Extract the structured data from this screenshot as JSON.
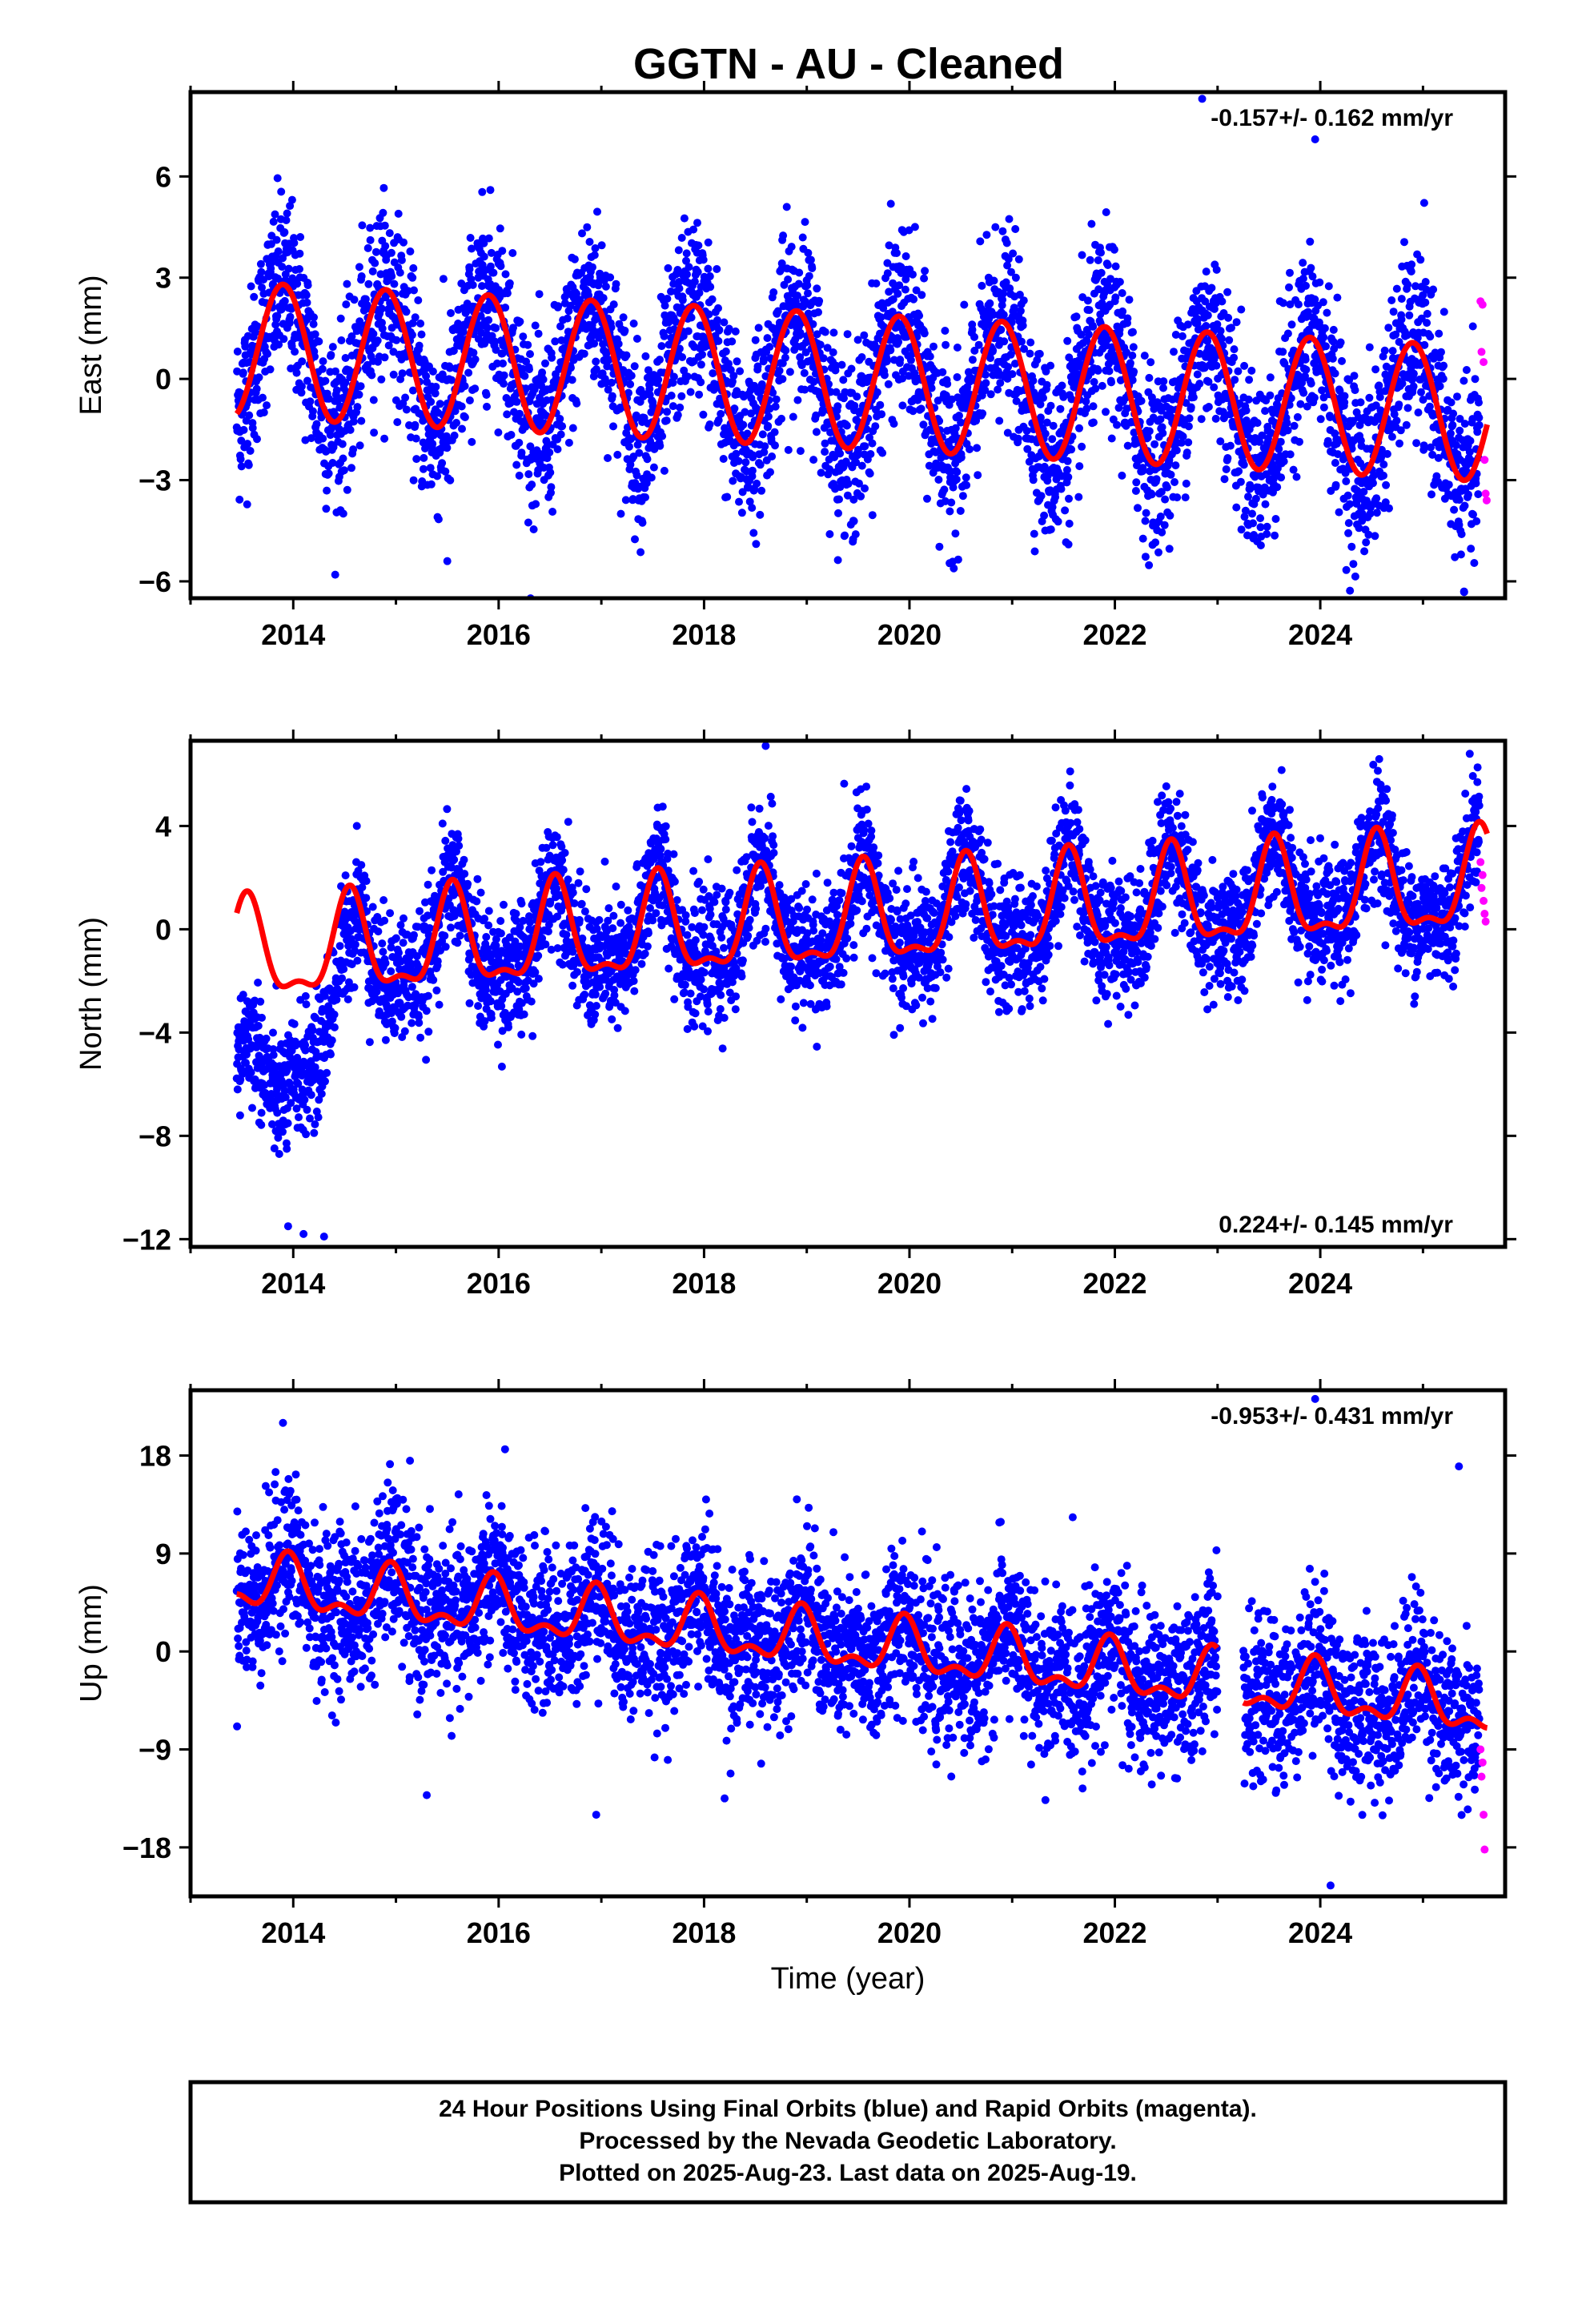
{
  "title": "GGTN  - AU - Cleaned",
  "footer": {
    "lines": [
      "24 Hour Positions Using Final Orbits (blue) and Rapid Orbits (magenta).",
      "Processed by the Nevada Geodetic Laboratory.",
      "Plotted on 2025-Aug-23. Last data on 2025-Aug-19."
    ]
  },
  "colors": {
    "final": "#0000ff",
    "rapid": "#ff00ff",
    "model": "#ff0000"
  },
  "chart_data": [
    {
      "type": "scatter",
      "ylabel": "East (mm)",
      "xlabel": "",
      "xlim": [
        2013.0,
        2025.8
      ],
      "ylim": [
        -6.5,
        8.5
      ],
      "xticks": [
        2014,
        2016,
        2018,
        2020,
        2022,
        2024
      ],
      "yticks": [
        6,
        3,
        0,
        -3,
        -6
      ],
      "ytick_labels": [
        "6",
        "3",
        "0",
        "−3",
        "−6"
      ],
      "rate": "-0.157+/- 0.162 mm/yr",
      "rate_position": "top-right",
      "data_start": 2013.45,
      "data_end": 2025.63,
      "rapid_start": 2025.55,
      "model": {
        "intercept_at_2019": 0.0,
        "trend_mm_per_yr": -0.157,
        "annual_amplitude": 2.0,
        "annual_peak": 2013.9,
        "semiannual_amplitude": 0.0,
        "semiannual_peak": 2014.0,
        "segments": [
          [
            2013.45,
            2025.63
          ]
        ]
      },
      "scatter_sd": 1.3,
      "outliers": [
        [
          2022.85,
          8.3
        ],
        [
          2023.95,
          7.1
        ],
        [
          2025.4,
          -6.3
        ],
        [
          2015.5,
          -5.4
        ]
      ],
      "rapid_points": [
        [
          2025.56,
          2.3
        ],
        [
          2025.58,
          2.2
        ],
        [
          2025.57,
          0.8
        ],
        [
          2025.59,
          0.5
        ],
        [
          2025.6,
          -2.4
        ],
        [
          2025.61,
          -3.4
        ],
        [
          2025.62,
          -3.6
        ]
      ]
    },
    {
      "type": "scatter",
      "ylabel": "North (mm)",
      "xlabel": "",
      "xlim": [
        2013.0,
        2025.8
      ],
      "ylim": [
        -12.3,
        7.3
      ],
      "xticks": [
        2014,
        2016,
        2018,
        2020,
        2022,
        2024
      ],
      "yticks": [
        4,
        0,
        -4,
        -8,
        -12
      ],
      "ytick_labels": [
        "4",
        "0",
        "−4",
        "−8",
        "−12"
      ],
      "rate": "0.224+/- 0.145 mm/yr",
      "rate_position": "bottom-right",
      "data_start": 2013.45,
      "data_end": 2025.63,
      "rapid_start": 2025.55,
      "model": {
        "intercept_at_2019": 0.2,
        "trend_mm_per_yr": 0.224,
        "annual_amplitude": 1.8,
        "annual_peak": 2013.55,
        "semiannual_amplitude": 0.7,
        "semiannual_peak": 2013.55,
        "segments": [
          [
            2013.45,
            2025.63
          ]
        ]
      },
      "scatter_sd": 1.2,
      "outliers": [
        [
          2018.6,
          7.1
        ],
        [
          2014.1,
          -11.8
        ],
        [
          2013.95,
          -11.5
        ],
        [
          2014.3,
          -11.9
        ]
      ],
      "rapid_points": [
        [
          2025.56,
          2.6
        ],
        [
          2025.58,
          2.1
        ],
        [
          2025.57,
          1.6
        ],
        [
          2025.59,
          1.1
        ],
        [
          2025.6,
          0.6
        ],
        [
          2025.61,
          0.3
        ]
      ]
    },
    {
      "type": "scatter",
      "ylabel": "Up (mm)",
      "xlabel": "Time (year)",
      "xlim": [
        2013.0,
        2025.8
      ],
      "ylim": [
        -22.5,
        24.0
      ],
      "xticks": [
        2014,
        2016,
        2018,
        2020,
        2022,
        2024
      ],
      "yticks": [
        18,
        9,
        0,
        -9,
        -18
      ],
      "ytick_labels": [
        "18",
        "9",
        "0",
        "−9",
        "−18"
      ],
      "rate": "-0.953+/- 0.431 mm/yr",
      "rate_position": "top-right",
      "data_start": 2013.45,
      "data_end": 2025.63,
      "rapid_start": 2025.55,
      "model": {
        "intercept_at_2019": 1.0,
        "trend_mm_per_yr": -0.953,
        "annual_amplitude": 2.2,
        "annual_peak": 2013.95,
        "semiannual_amplitude": 1.2,
        "semiannual_peak": 2013.95,
        "segments": [
          [
            2013.45,
            2023.0
          ],
          [
            2023.25,
            2025.63
          ]
        ]
      },
      "scatter_sd": 3.6,
      "outliers": [
        [
          2023.95,
          23.2
        ],
        [
          2013.9,
          21.0
        ],
        [
          2024.1,
          -21.5
        ],
        [
          2016.95,
          -15.0
        ],
        [
          2018.2,
          -13.5
        ],
        [
          2015.3,
          -13.2
        ],
        [
          2025.35,
          17.0
        ]
      ],
      "rapid_points": [
        [
          2025.56,
          -9.0
        ],
        [
          2025.58,
          -10.2
        ],
        [
          2025.57,
          -11.5
        ],
        [
          2025.59,
          -15.0
        ],
        [
          2025.6,
          -18.2
        ]
      ]
    }
  ]
}
